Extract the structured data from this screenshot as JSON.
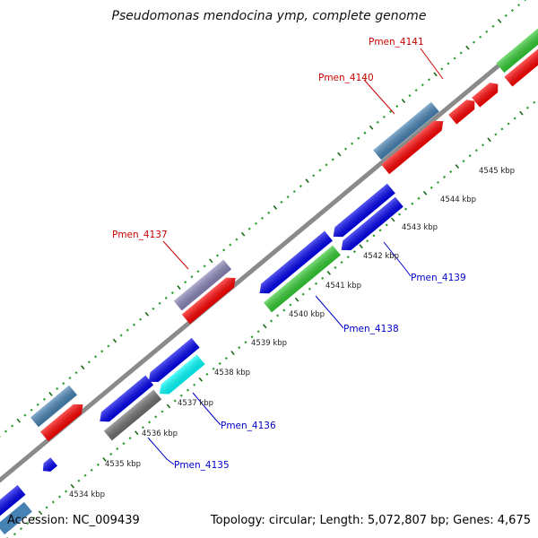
{
  "title": "Pseudomonas mendocina ymp, complete genome",
  "accession_text": "Accession: NC_009439",
  "summary_text": "Topology: circular; Length: 5,072,807 bp; Genes: 4,675",
  "colors": {
    "backbone": "#8a8a8a",
    "tick_dark": "#1a6b1a",
    "tick_light": "#2e9c2e",
    "label_red": "#cc0000",
    "label_blue": "#0000cc",
    "forward_gene": "#ff0000",
    "reverse_gene": "#0000ee",
    "steel_gene": "#4682b4",
    "green_gene": "#33cc33",
    "cyan_gene": "#00ffff",
    "gray_gene": "#6e6e6e",
    "lavender_gene": "#8a85b8"
  },
  "ruler_labels": [
    "4534 kbp",
    "4535 kbp",
    "4536 kbp",
    "4537 kbp",
    "4538 kbp",
    "4539 kbp",
    "4540 kbp",
    "4541 kbp",
    "4542 kbp",
    "4543 kbp",
    "4544 kbp",
    "4545 kbp"
  ],
  "gene_labels": [
    "Pmen_4141",
    "Pmen_4140",
    "Pmen_4137",
    "Pmen_4139",
    "Pmen_4138",
    "Pmen_4136",
    "Pmen_4135"
  ]
}
